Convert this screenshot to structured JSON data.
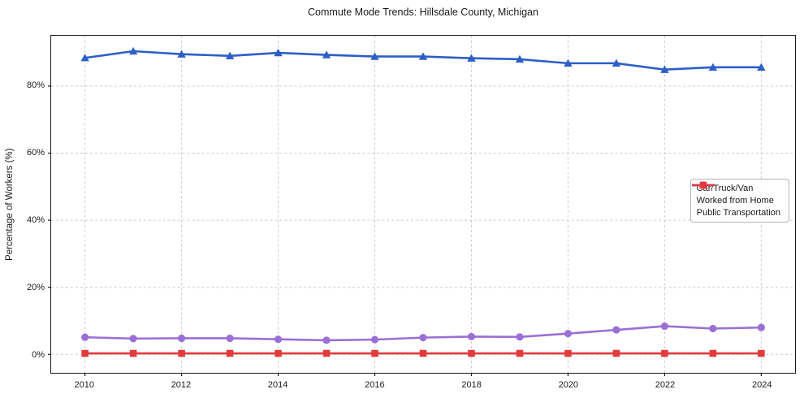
{
  "chart_data": {
    "type": "line",
    "title": "Commute Mode Trends: Hillsdale County, Michigan",
    "xlabel": "",
    "ylabel": "Percentage of Workers (%)",
    "x": [
      2010,
      2011,
      2012,
      2013,
      2014,
      2015,
      2016,
      2017,
      2018,
      2019,
      2020,
      2021,
      2022,
      2023,
      2024
    ],
    "series": [
      {
        "name": "Car/Truck/Van",
        "color": "#2d5fc7",
        "marker": "triangle",
        "values": [
          88.4,
          90.4,
          89.5,
          89.0,
          89.9,
          89.3,
          88.8,
          88.8,
          88.3,
          88.0,
          86.8,
          86.8,
          84.9,
          85.6,
          85.6
        ]
      },
      {
        "name": "Worked from Home",
        "color": "#9b6fd6",
        "marker": "circle",
        "values": [
          5.1,
          4.7,
          4.8,
          4.8,
          4.5,
          4.2,
          4.4,
          5.0,
          5.3,
          5.2,
          6.2,
          7.3,
          8.4,
          7.7,
          8.0
        ]
      },
      {
        "name": "Public Transportation",
        "color": "#e23b3b",
        "marker": "square",
        "values": [
          0.3,
          0.3,
          0.3,
          0.3,
          0.3,
          0.3,
          0.3,
          0.3,
          0.3,
          0.3,
          0.3,
          0.3,
          0.3,
          0.3,
          0.3
        ]
      }
    ],
    "xlim": [
      2009.3,
      2024.7
    ],
    "ylim": [
      -5.5,
      95
    ],
    "xticks": {
      "values": [
        2010,
        2012,
        2014,
        2016,
        2018,
        2020,
        2022,
        2024
      ],
      "labels": [
        "2010",
        "2012",
        "2014",
        "2016",
        "2018",
        "2020",
        "2022",
        "2024"
      ]
    },
    "yticks": {
      "values": [
        0,
        20,
        40,
        60,
        80
      ],
      "labels": [
        "0%",
        "20%",
        "40%",
        "60%",
        "80%"
      ]
    },
    "grid": true,
    "legend_position": "right-inside"
  },
  "styles": {
    "grid_color": "#cccccc",
    "spine_color": "#1a1a1a",
    "text_color": "#1a1a1a",
    "legend_border": "#b5b5b5",
    "background": "#ffffff"
  }
}
